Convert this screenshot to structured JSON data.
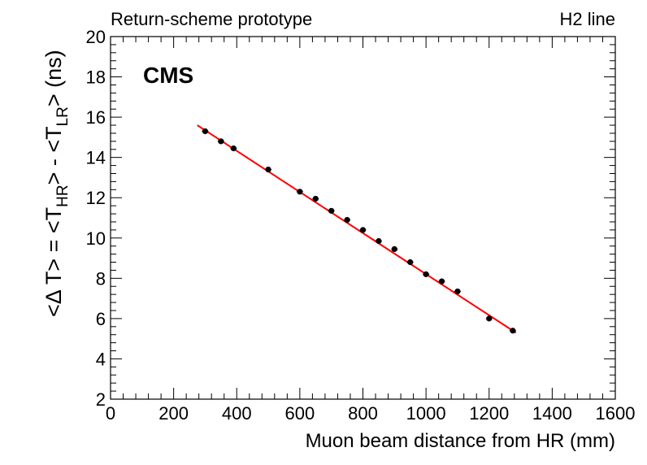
{
  "header": {
    "left_title": "Return-scheme prototype",
    "right_title": "H2 line"
  },
  "chart_data": {
    "type": "scatter",
    "label": "CMS",
    "xlabel": "Muon beam distance from HR (mm)",
    "ylabel": {
      "prefix": "<Δ T> = <T",
      "sub1": "HR",
      "mid": "> - <T",
      "sub2": "LR",
      "suffix": "> (ns)"
    },
    "xlim": [
      0,
      1600
    ],
    "ylim": [
      2,
      20
    ],
    "xticks": [
      0,
      200,
      400,
      600,
      800,
      1000,
      1200,
      1400,
      1600
    ],
    "yticks": [
      2,
      4,
      6,
      8,
      10,
      12,
      14,
      16,
      18,
      20
    ],
    "grid": false,
    "series": [
      {
        "color": "#000000",
        "points": [
          {
            "x": 300,
            "y": 15.3
          },
          {
            "x": 350,
            "y": 14.8
          },
          {
            "x": 390,
            "y": 14.45
          },
          {
            "x": 500,
            "y": 13.4
          },
          {
            "x": 600,
            "y": 12.3
          },
          {
            "x": 650,
            "y": 11.95
          },
          {
            "x": 700,
            "y": 11.35
          },
          {
            "x": 750,
            "y": 10.9
          },
          {
            "x": 800,
            "y": 10.4
          },
          {
            "x": 850,
            "y": 9.85
          },
          {
            "x": 900,
            "y": 9.45
          },
          {
            "x": 950,
            "y": 8.8
          },
          {
            "x": 1000,
            "y": 8.2
          },
          {
            "x": 1050,
            "y": 7.85
          },
          {
            "x": 1100,
            "y": 7.35
          },
          {
            "x": 1200,
            "y": 6.0
          },
          {
            "x": 1275,
            "y": 5.4
          }
        ]
      }
    ],
    "fit": {
      "color": "#ff0000",
      "x_start": 275,
      "y_start": 15.6,
      "x_end": 1285,
      "y_end": 5.3
    }
  }
}
